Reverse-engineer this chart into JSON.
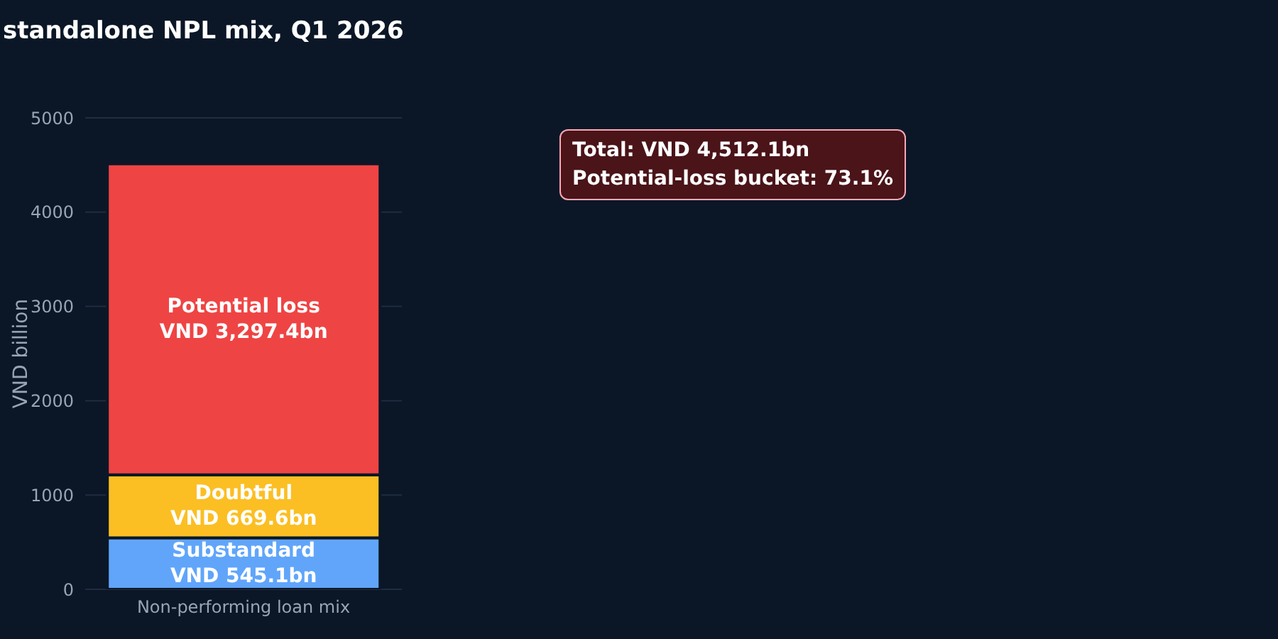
{
  "chart_data": {
    "type": "bar",
    "title": "standalone NPL mix, Q1 2026",
    "ylabel": "VND billion",
    "categories": [
      "Non-performing loan mix"
    ],
    "stacked": true,
    "ylim": [
      0,
      5000
    ],
    "yticks": [
      0,
      1000,
      2000,
      3000,
      4000,
      5000
    ],
    "grid": "y",
    "legend": false,
    "series": [
      {
        "name": "Substandard",
        "color": "#60a5fa",
        "values": [
          545.1
        ],
        "value_labels": [
          "VND 545.1bn"
        ]
      },
      {
        "name": "Doubtful",
        "color": "#fbbf24",
        "values": [
          669.6
        ],
        "value_labels": [
          "VND 669.6bn"
        ]
      },
      {
        "name": "Potential loss",
        "color": "#ef4444",
        "values": [
          3297.4
        ],
        "value_labels": [
          "VND 3,297.4bn"
        ]
      }
    ],
    "annotations": [
      "Total: VND 4,512.1bn",
      "Potential-loss bucket: 73.1%"
    ]
  }
}
